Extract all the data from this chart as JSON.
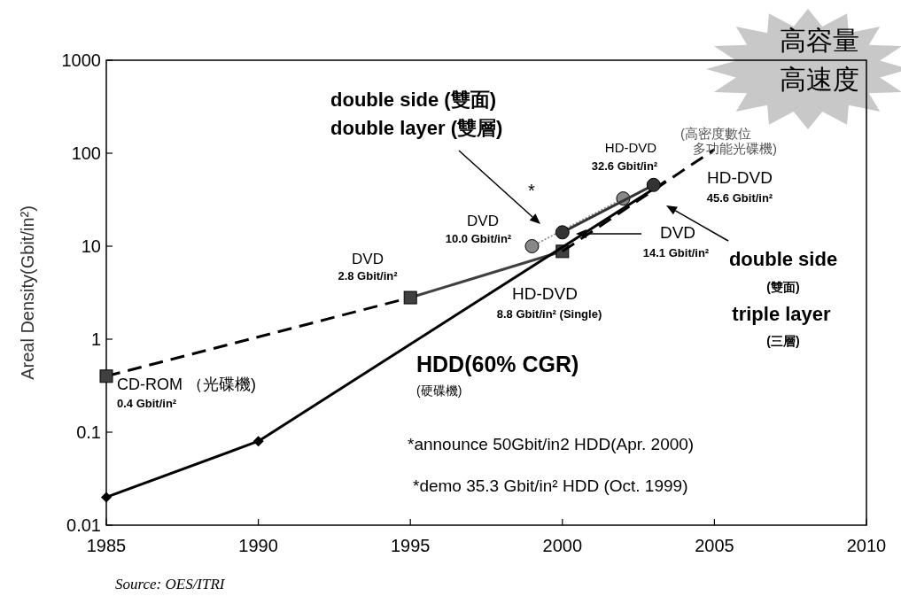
{
  "chart_data": {
    "type": "line",
    "ylabel": "Areal Density(Gbit/in²)",
    "log": "y",
    "xlim": [
      1985,
      2010
    ],
    "ylim": [
      0.01,
      1000
    ],
    "xticks": [
      1985,
      1990,
      1995,
      2000,
      2005,
      2010
    ],
    "yticks": [
      0.01,
      0.1,
      1,
      10,
      100,
      1000
    ],
    "series": [
      {
        "x": [
          1985,
          1995
        ],
        "values": [
          0.4,
          2.8
        ],
        "color": "#000000",
        "line_style": "dashed"
      },
      {
        "type": "scatter",
        "x": [
          1985
        ],
        "values": [
          0.4
        ],
        "color": "#404040",
        "marker": "square"
      },
      {
        "x": [
          1995,
          2000
        ],
        "values": [
          2.8,
          8.8
        ],
        "color": "#404040",
        "line_style": "solid",
        "marker": "square"
      },
      {
        "x": [
          2000,
          2005
        ],
        "values": [
          8.8,
          110
        ],
        "color": "#000000",
        "line_style": "dashed",
        "marker": "none"
      },
      {
        "x": [
          1985,
          1990
        ],
        "values": [
          0.02,
          0.08
        ],
        "color": "#000000",
        "line_style": "solid",
        "marker": "diamond"
      },
      {
        "x": [
          1990,
          2003.4
        ],
        "values": [
          0.08,
          50
        ],
        "color": "#000000",
        "line_style": "solid",
        "marker": "none"
      },
      {
        "x": [
          1999,
          2002
        ],
        "values": [
          10.0,
          32.6
        ],
        "color": "#888888",
        "line_style": "dotted",
        "marker": "circle"
      },
      {
        "x": [
          2000,
          2003
        ],
        "values": [
          14.1,
          45.6
        ],
        "color": "#333333",
        "line_style": "solid",
        "marker": "circle"
      }
    ],
    "annotations": [
      "double side (雙面)",
      "double layer (雙層)",
      "*",
      "DVD",
      "10.0 Gbit/in²",
      "HD-DVD",
      "32.6 Gbit/in²",
      "(高密度數位",
      "多功能光碟機)",
      "HD-DVD",
      "45.6 Gbit/in²",
      "DVD",
      "14.1 Gbit/in²",
      "double side",
      "(雙面)",
      "triple layer",
      "(三層)",
      "DVD",
      "2.8 Gbit/in²",
      "HD-DVD",
      "8.8 Gbit/in² (Single)",
      "CD-ROM （光碟機)",
      "0.4 Gbit/in²",
      "HDD(60% CGR)",
      "(硬碟機)",
      "*announce 50Gbit/in2 HDD(Apr. 2000)",
      "*demo 35.3 Gbit/in² HDD (Oct. 1999)",
      "Source: OES/ITRI",
      "高容量",
      "高速度"
    ]
  }
}
